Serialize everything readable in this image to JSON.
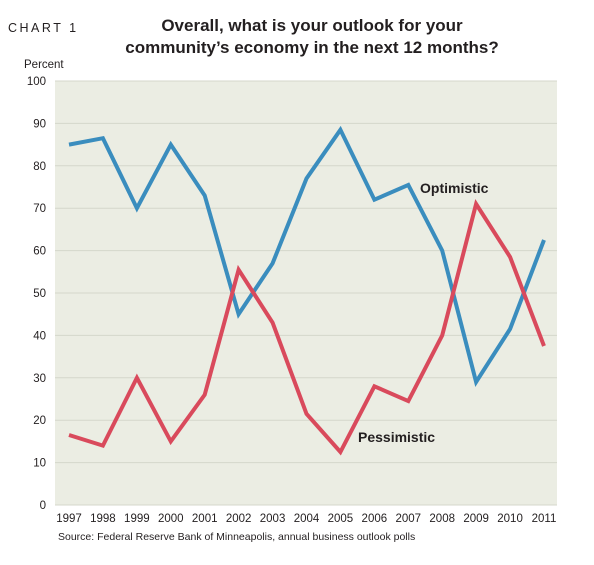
{
  "header": {
    "chart_label": "CHART 1",
    "title": "Overall, what is your outlook for your community’s economy in the next 12 months?"
  },
  "source": "Source: Federal Reserve Bank of Minneapolis, annual business outlook polls",
  "colors": {
    "plot_background": "#ebede3",
    "gridline": "#d4d7cb",
    "optimistic": "#3a8dbe",
    "pessimistic": "#d94a5c"
  },
  "chart_data": {
    "type": "line",
    "title": "Overall, what is your outlook for your community’s economy in the next 12 months?",
    "ylabel": "Percent",
    "xlabel": "",
    "ylim": [
      0,
      100
    ],
    "yticks": [
      0,
      10,
      20,
      30,
      40,
      50,
      60,
      70,
      80,
      90,
      100
    ],
    "grid": true,
    "x": [
      "1997",
      "1998",
      "1999",
      "2000",
      "2001",
      "2002",
      "2003",
      "2004",
      "2005",
      "2006",
      "2007",
      "2008",
      "2009",
      "2010",
      "2011"
    ],
    "series": [
      {
        "name": "Optimistic",
        "values": [
          85,
          86.5,
          70,
          85,
          73,
          45,
          57,
          77,
          88.5,
          72,
          75.5,
          60,
          29,
          41.5,
          62.5
        ]
      },
      {
        "name": "Pessimistic",
        "values": [
          16.5,
          14,
          30,
          15,
          26,
          55.5,
          43,
          21.5,
          12.5,
          28,
          24.5,
          40,
          71,
          58.5,
          37.5
        ]
      }
    ]
  }
}
